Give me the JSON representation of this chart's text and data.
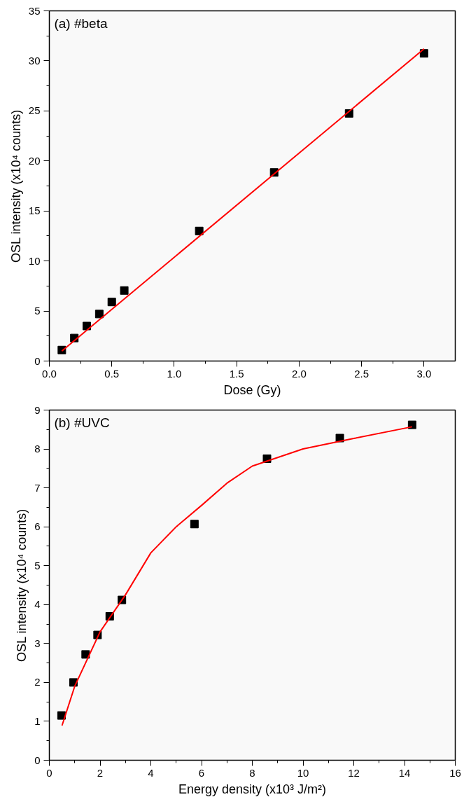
{
  "chart_data": [
    {
      "type": "scatter",
      "annotations": [
        "(a) #beta"
      ],
      "xlabel": "Dose (Gy)",
      "ylabel": "OSL intensity (x10⁴ counts)",
      "xlim": [
        0,
        3.25
      ],
      "ylim": [
        0,
        35
      ],
      "xticks": [
        {
          "value": 0,
          "label": "0.0"
        },
        {
          "value": 0.5,
          "label": "0.5"
        },
        {
          "value": 1,
          "label": "1.0"
        },
        {
          "value": 1.5,
          "label": "1.5"
        },
        {
          "value": 2,
          "label": "2.0"
        },
        {
          "value": 2.5,
          "label": "2.5"
        },
        {
          "value": 3,
          "label": "3.0"
        }
      ],
      "yticks": [
        0,
        5,
        10,
        15,
        20,
        25,
        30,
        35
      ],
      "grid": false,
      "series": [
        {
          "marker": "square",
          "color": "#000000",
          "x": [
            0.1,
            0.2,
            0.3,
            0.4,
            0.5,
            0.6,
            1.2,
            1.8,
            2.4,
            3.0
          ],
          "values": [
            1.1,
            2.3,
            3.5,
            4.7,
            5.9,
            7.05,
            13.0,
            18.85,
            24.75,
            30.75
          ]
        },
        {
          "type": "line",
          "color": "#ff0000",
          "x": [
            0.1,
            3.0
          ],
          "values": [
            1.0,
            31.2
          ]
        }
      ]
    },
    {
      "type": "scatter",
      "annotations": [
        "(b) #UVC"
      ],
      "xlabel": "Energy density (x10³ J/m²)",
      "ylabel": "OSL intensity (x10⁴ counts)",
      "xlim": [
        0,
        16
      ],
      "ylim": [
        0,
        9
      ],
      "xticks": [
        0,
        2,
        4,
        6,
        8,
        10,
        12,
        14,
        16
      ],
      "yticks": [
        0,
        1,
        2,
        3,
        4,
        5,
        6,
        7,
        8,
        9
      ],
      "grid": false,
      "series": [
        {
          "marker": "square",
          "color": "#000000",
          "x": [
            0.48,
            0.95,
            1.43,
            1.9,
            2.38,
            2.86,
            5.72,
            8.58,
            11.45,
            14.3
          ],
          "values": [
            1.15,
            2.0,
            2.72,
            3.22,
            3.7,
            4.12,
            6.07,
            7.75,
            8.28,
            8.62
          ]
        },
        {
          "type": "line",
          "color": "#ff0000",
          "x": [
            0.5,
            1,
            2,
            3,
            4,
            5,
            6,
            7,
            8,
            10,
            12,
            14.3
          ],
          "values": [
            0.89,
            1.9,
            3.3,
            4.25,
            5.33,
            6.0,
            6.55,
            7.12,
            7.56,
            8.0,
            8.27,
            8.57
          ]
        }
      ]
    }
  ]
}
